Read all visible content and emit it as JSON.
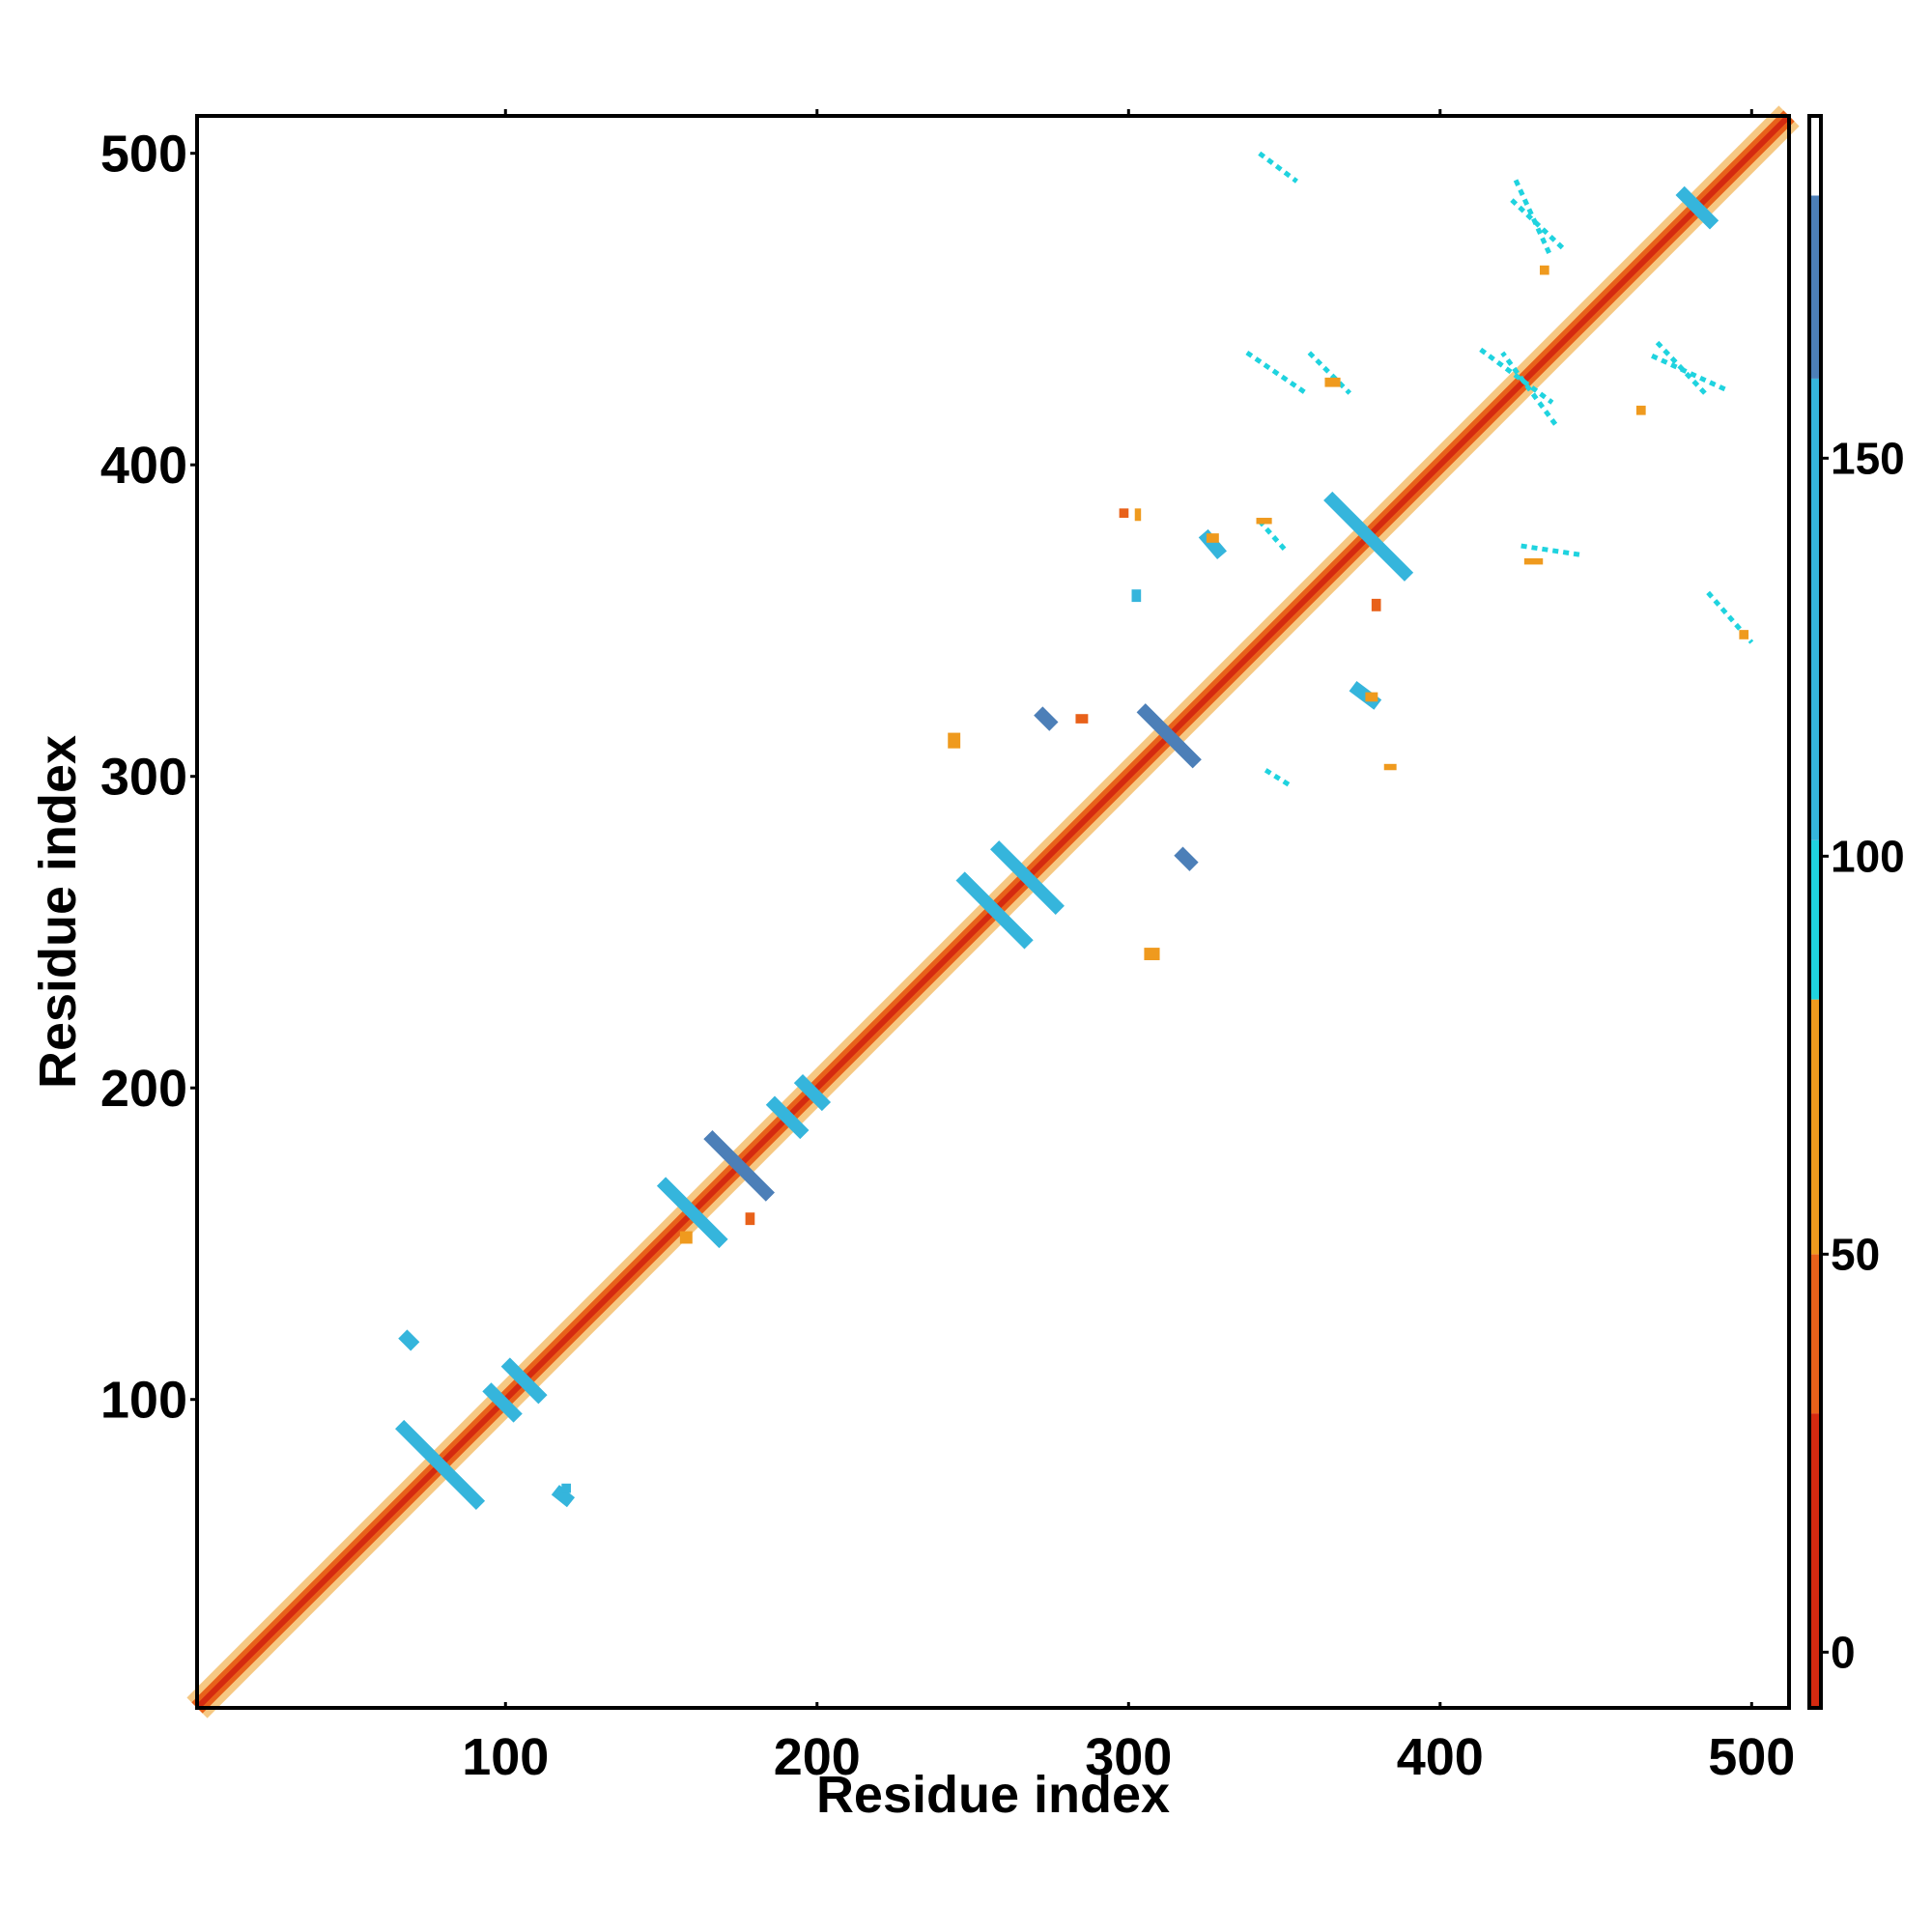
{
  "chart_data": {
    "type": "heatmap",
    "title": "",
    "xlabel": "Residue index",
    "ylabel": "Residue index",
    "xlim": [
      1,
      512
    ],
    "ylim": [
      1,
      512
    ],
    "x_ticks": [
      100,
      200,
      300,
      400,
      500
    ],
    "y_ticks": [
      100,
      200,
      300,
      400,
      500
    ],
    "grid": false,
    "colorbar": {
      "ticks": [
        0,
        50,
        100,
        150
      ],
      "range": [
        -7,
        193
      ],
      "segments": [
        {
          "from": -7,
          "to": 30,
          "color": "#d42a10"
        },
        {
          "from": 30,
          "to": 50,
          "color": "#e8611a"
        },
        {
          "from": 50,
          "to": 82,
          "color": "#ef9a1e"
        },
        {
          "from": 82,
          "to": 102,
          "color": "#1fd3df"
        },
        {
          "from": 102,
          "to": 160,
          "color": "#35b5dc"
        },
        {
          "from": 160,
          "to": 183,
          "color": "#4c7fb8"
        },
        {
          "from": 183,
          "to": 193,
          "color": "#ffffff"
        }
      ]
    },
    "colors": {
      "red": "#d42a10",
      "dark_orange": "#e8611a",
      "orange": "#ef9a1e",
      "cyan": "#1fd3df",
      "sky": "#35b5dc",
      "steel": "#4c7fb8"
    },
    "contact_segments": [
      {
        "x1": 66,
        "y1": 92,
        "x2": 92,
        "y2": 66,
        "color": "sky"
      },
      {
        "x1": 94,
        "y1": 104,
        "x2": 104,
        "y2": 94,
        "color": "sky"
      },
      {
        "x1": 100,
        "y1": 112,
        "x2": 112,
        "y2": 100,
        "color": "sky"
      },
      {
        "x1": 150,
        "y1": 170,
        "x2": 170,
        "y2": 150,
        "color": "sky"
      },
      {
        "x1": 165,
        "y1": 185,
        "x2": 185,
        "y2": 165,
        "color": "steel"
      },
      {
        "x1": 185,
        "y1": 196,
        "x2": 196,
        "y2": 185,
        "color": "sky"
      },
      {
        "x1": 194,
        "y1": 203,
        "x2": 203,
        "y2": 194,
        "color": "sky"
      },
      {
        "x1": 246,
        "y1": 268,
        "x2": 268,
        "y2": 246,
        "color": "sky"
      },
      {
        "x1": 257,
        "y1": 278,
        "x2": 278,
        "y2": 257,
        "color": "sky"
      },
      {
        "x1": 304,
        "y1": 322,
        "x2": 322,
        "y2": 304,
        "color": "steel"
      },
      {
        "x1": 364,
        "y1": 390,
        "x2": 390,
        "y2": 364,
        "color": "sky"
      },
      {
        "x1": 477,
        "y1": 488,
        "x2": 488,
        "y2": 477,
        "color": "sky"
      },
      {
        "x1": 67,
        "y1": 121,
        "x2": 71,
        "y2": 117,
        "color": "sky"
      },
      {
        "x1": 116,
        "y1": 71,
        "x2": 121,
        "y2": 67,
        "color": "sky"
      },
      {
        "x1": 271,
        "y1": 321,
        "x2": 276,
        "y2": 316,
        "color": "steel"
      },
      {
        "x1": 316,
        "y1": 276,
        "x2": 321,
        "y2": 271,
        "color": "steel"
      },
      {
        "x1": 413,
        "y1": 437,
        "x2": 436,
        "y2": 420,
        "color": "cyan"
      },
      {
        "x1": 437,
        "y1": 413,
        "x2": 420,
        "y2": 436,
        "color": "cyan"
      },
      {
        "x1": 468,
        "y1": 435,
        "x2": 492,
        "y2": 424,
        "color": "cyan"
      },
      {
        "x1": 435,
        "y1": 468,
        "x2": 424,
        "y2": 492,
        "color": "cyan"
      },
      {
        "x1": 423,
        "y1": 485,
        "x2": 440,
        "y2": 469,
        "color": "cyan"
      },
      {
        "x1": 485,
        "y1": 423,
        "x2": 469,
        "y2": 440,
        "color": "cyan"
      },
      {
        "x1": 342,
        "y1": 500,
        "x2": 354,
        "y2": 491,
        "color": "cyan"
      },
      {
        "x1": 426,
        "y1": 374,
        "x2": 446,
        "y2": 371,
        "color": "cyan"
      },
      {
        "x1": 486,
        "y1": 359,
        "x2": 500,
        "y2": 343,
        "color": "cyan"
      },
      {
        "x1": 342,
        "y1": 382,
        "x2": 350,
        "y2": 373,
        "color": "cyan"
      },
      {
        "x1": 324,
        "y1": 378,
        "x2": 330,
        "y2": 371,
        "color": "sky"
      },
      {
        "x1": 372,
        "y1": 329,
        "x2": 380,
        "y2": 323,
        "color": "sky"
      },
      {
        "x1": 344,
        "y1": 302,
        "x2": 352,
        "y2": 297,
        "color": "cyan"
      },
      {
        "x1": 358,
        "y1": 436,
        "x2": 371,
        "y2": 423,
        "color": "cyan"
      },
      {
        "x1": 338,
        "y1": 436,
        "x2": 357,
        "y2": 423,
        "color": "cyan"
      }
    ],
    "contact_patches": [
      {
        "x": 242,
        "y": 309,
        "w": 4,
        "h": 5,
        "color": "orange"
      },
      {
        "x": 305,
        "y": 241,
        "w": 5,
        "h": 4,
        "color": "orange"
      },
      {
        "x": 382,
        "y": 302,
        "w": 4,
        "h": 2,
        "color": "orange"
      },
      {
        "x": 302,
        "y": 382,
        "w": 2,
        "h": 4,
        "color": "orange"
      },
      {
        "x": 378,
        "y": 353,
        "w": 3,
        "h": 4,
        "color": "dark_orange"
      },
      {
        "x": 301,
        "y": 356,
        "w": 3,
        "h": 4,
        "color": "sky"
      },
      {
        "x": 118,
        "y": 70,
        "w": 3,
        "h": 3,
        "color": "sky"
      },
      {
        "x": 156,
        "y": 150,
        "w": 4,
        "h": 4,
        "color": "orange"
      },
      {
        "x": 177,
        "y": 156,
        "w": 3,
        "h": 4,
        "color": "dark_orange"
      },
      {
        "x": 283,
        "y": 317,
        "w": 4,
        "h": 3,
        "color": "dark_orange"
      },
      {
        "x": 325,
        "y": 375,
        "w": 4,
        "h": 3,
        "color": "orange"
      },
      {
        "x": 376,
        "y": 324,
        "w": 4,
        "h": 3,
        "color": "orange"
      },
      {
        "x": 496,
        "y": 344,
        "w": 3,
        "h": 3,
        "color": "orange"
      },
      {
        "x": 432,
        "y": 461,
        "w": 3,
        "h": 3,
        "color": "orange"
      },
      {
        "x": 363,
        "y": 425,
        "w": 5,
        "h": 3,
        "color": "orange"
      },
      {
        "x": 297,
        "y": 383,
        "w": 3,
        "h": 3,
        "color": "dark_orange"
      },
      {
        "x": 341,
        "y": 381,
        "w": 5,
        "h": 2,
        "color": "orange"
      },
      {
        "x": 463,
        "y": 416,
        "w": 3,
        "h": 3,
        "color": "orange"
      },
      {
        "x": 427,
        "y": 368,
        "w": 6,
        "h": 2,
        "color": "orange"
      }
    ]
  }
}
